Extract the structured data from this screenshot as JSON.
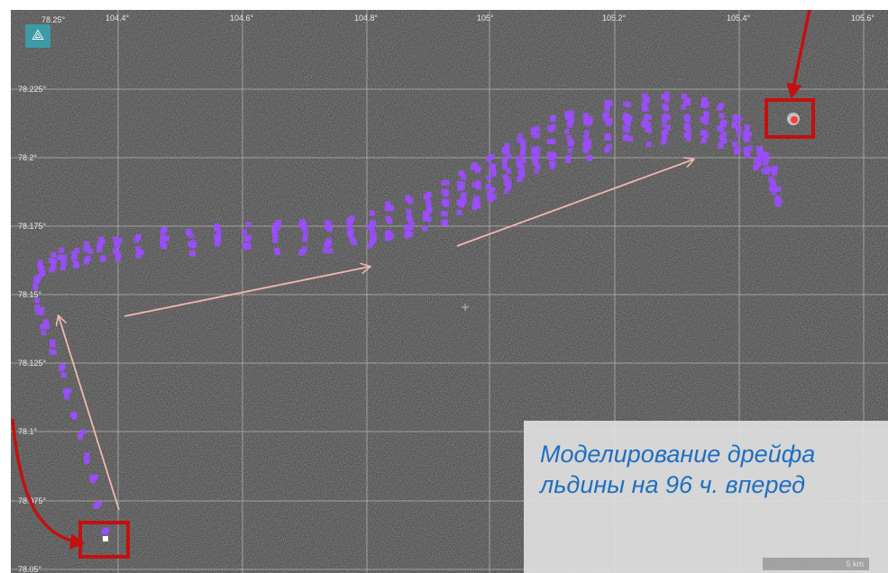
{
  "map": {
    "lon_ticks": [
      "104.4°",
      "104.6°",
      "104.8°",
      "105°",
      "105.2°",
      "105.4°",
      "105.6°"
    ],
    "lat_ticks": [
      "78.225°",
      "78.2°",
      "78.175°",
      "78.15°",
      "78.125°",
      "78.1°",
      "78.075°",
      "78.05°"
    ],
    "corner_tick": "78.25°",
    "scale_label": "5 km",
    "drift_color": "#9b4dff",
    "arrow_color": "#f0b8b0",
    "marker_color": "#d01010",
    "start_marker": "start-position-box",
    "end_marker": "end-position-box"
  },
  "caption": {
    "text": "Моделирование дрейфа льдины на 96 ч. вперед",
    "color": "#1f6fc0"
  },
  "app_icon": "map-tool-icon"
}
